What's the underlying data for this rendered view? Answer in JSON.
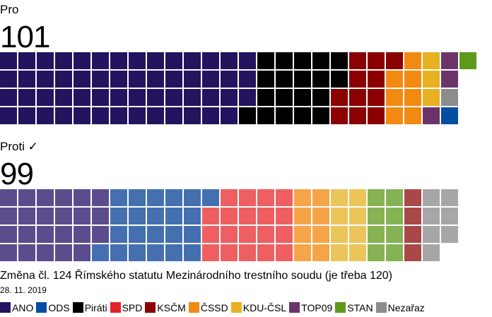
{
  "vote": {
    "for_label": "Pro",
    "for_count": "101",
    "against_label": "Proti ✓",
    "against_count": "99",
    "title": "Změna čl. 124 Římského statutu Mezinárodního trestního soudu (je třeba 120)",
    "date": "28. 11. 2019"
  },
  "chart_data": {
    "type": "waffle",
    "rows": 4,
    "fill_order": "column-major, top-to-bottom",
    "parties": [
      {
        "name": "ANO",
        "color": "#24135f",
        "color_against": "#5b4d8d"
      },
      {
        "name": "ODS",
        "color": "#034ea2",
        "color_against": "#4470b0"
      },
      {
        "name": "Piráti",
        "color": "#000000",
        "color_against": "#404040"
      },
      {
        "name": "SPD",
        "color": "#e52328",
        "color_against": "#ef5f62"
      },
      {
        "name": "KSČM",
        "color": "#8b0000",
        "color_against": "#a84848"
      },
      {
        "name": "ČSSD",
        "color": "#f28a11",
        "color_against": "#f5a547"
      },
      {
        "name": "KDU-ČSL",
        "color": "#e8b121",
        "color_against": "#ecc55a"
      },
      {
        "name": "TOP09",
        "color": "#6b3469",
        "color_against": "#936c90"
      },
      {
        "name": "STAN",
        "color": "#5c9a1b",
        "color_against": "#85b253"
      },
      {
        "name": "Nezařaz",
        "color": "#8c8c8c",
        "color_against": "#a6a6a6"
      }
    ],
    "series": [
      {
        "name": "Pro",
        "total": 101,
        "columns": [
          [
            "ANO",
            "ANO",
            "ANO",
            "ANO"
          ],
          [
            "ANO",
            "ANO",
            "ANO",
            "ANO"
          ],
          [
            "ANO",
            "ANO",
            "ANO",
            "ANO"
          ],
          [
            "ANO",
            "ANO",
            "ANO",
            "ANO"
          ],
          [
            "ANO",
            "ANO",
            "ANO",
            "ANO"
          ],
          [
            "ANO",
            "ANO",
            "ANO",
            "ANO"
          ],
          [
            "ANO",
            "ANO",
            "ANO",
            "ANO"
          ],
          [
            "ANO",
            "ANO",
            "ANO",
            "ANO"
          ],
          [
            "ANO",
            "ANO",
            "ANO",
            "ANO"
          ],
          [
            "ANO",
            "ANO",
            "ANO",
            "ANO"
          ],
          [
            "ANO",
            "ANO",
            "ANO",
            "ANO"
          ],
          [
            "ANO",
            "ANO",
            "ANO",
            "ANO"
          ],
          [
            "ANO",
            "ANO",
            "ANO",
            "ANO"
          ],
          [
            "ANO",
            "ANO",
            "ANO",
            "Piráti"
          ],
          [
            "Piráti",
            "Piráti",
            "Piráti",
            "Piráti"
          ],
          [
            "Piráti",
            "Piráti",
            "Piráti",
            "Piráti"
          ],
          [
            "Piráti",
            "Piráti",
            "Piráti",
            "Piráti"
          ],
          [
            "Piráti",
            "Piráti",
            "Piráti",
            "Piráti"
          ],
          [
            "Piráti",
            "Piráti",
            "KSČM",
            "KSČM"
          ],
          [
            "KSČM",
            "KSČM",
            "KSČM",
            "KSČM"
          ],
          [
            "KSČM",
            "KSČM",
            "KSČM",
            "KSČM"
          ],
          [
            "KSČM",
            "ČSSD",
            "ČSSD",
            "ČSSD"
          ],
          [
            "ČSSD",
            "ČSSD",
            "ČSSD",
            "ČSSD"
          ],
          [
            "KDU-ČSL",
            "KDU-ČSL",
            "KDU-ČSL",
            "TOP09"
          ],
          [
            "TOP09",
            "TOP09",
            "Nezařaz",
            "ODS"
          ],
          [
            "STAN"
          ]
        ]
      },
      {
        "name": "Proti ✓",
        "total": 99,
        "columns": [
          [
            "ANO",
            "ANO",
            "ANO",
            "ANO"
          ],
          [
            "ANO",
            "ANO",
            "ANO",
            "ANO"
          ],
          [
            "ANO",
            "ANO",
            "ANO",
            "ANO"
          ],
          [
            "ANO",
            "ANO",
            "ANO",
            "ANO"
          ],
          [
            "ANO",
            "ANO",
            "ANO",
            "ANO"
          ],
          [
            "ANO",
            "ANO",
            "ANO",
            "ODS"
          ],
          [
            "ODS",
            "ODS",
            "ODS",
            "ODS"
          ],
          [
            "ODS",
            "ODS",
            "ODS",
            "ODS"
          ],
          [
            "ODS",
            "ODS",
            "ODS",
            "ODS"
          ],
          [
            "ODS",
            "ODS",
            "ODS",
            "ODS"
          ],
          [
            "ODS",
            "ODS",
            "ODS",
            "ODS"
          ],
          [
            "ODS",
            "SPD",
            "SPD",
            "SPD"
          ],
          [
            "SPD",
            "SPD",
            "SPD",
            "SPD"
          ],
          [
            "SPD",
            "SPD",
            "SPD",
            "SPD"
          ],
          [
            "SPD",
            "SPD",
            "SPD",
            "SPD"
          ],
          [
            "SPD",
            "SPD",
            "SPD",
            "SPD"
          ],
          [
            "ČSSD",
            "ČSSD",
            "ČSSD",
            "ČSSD"
          ],
          [
            "ČSSD",
            "ČSSD",
            "ČSSD",
            "ČSSD"
          ],
          [
            "KDU-ČSL",
            "KDU-ČSL",
            "KDU-ČSL",
            "KDU-ČSL"
          ],
          [
            "KDU-ČSL",
            "KDU-ČSL",
            "KDU-ČSL",
            "KDU-ČSL"
          ],
          [
            "STAN",
            "STAN",
            "STAN",
            "STAN"
          ],
          [
            "STAN",
            "STAN",
            "STAN",
            "STAN"
          ],
          [
            "KSČM",
            "KSČM",
            "KSČM",
            "KSČM"
          ],
          [
            "Nezařaz",
            "Nezařaz",
            "Nezařaz",
            "Nezařaz"
          ],
          [
            "Nezařaz",
            "Nezařaz",
            "Nezařaz"
          ]
        ]
      }
    ]
  }
}
